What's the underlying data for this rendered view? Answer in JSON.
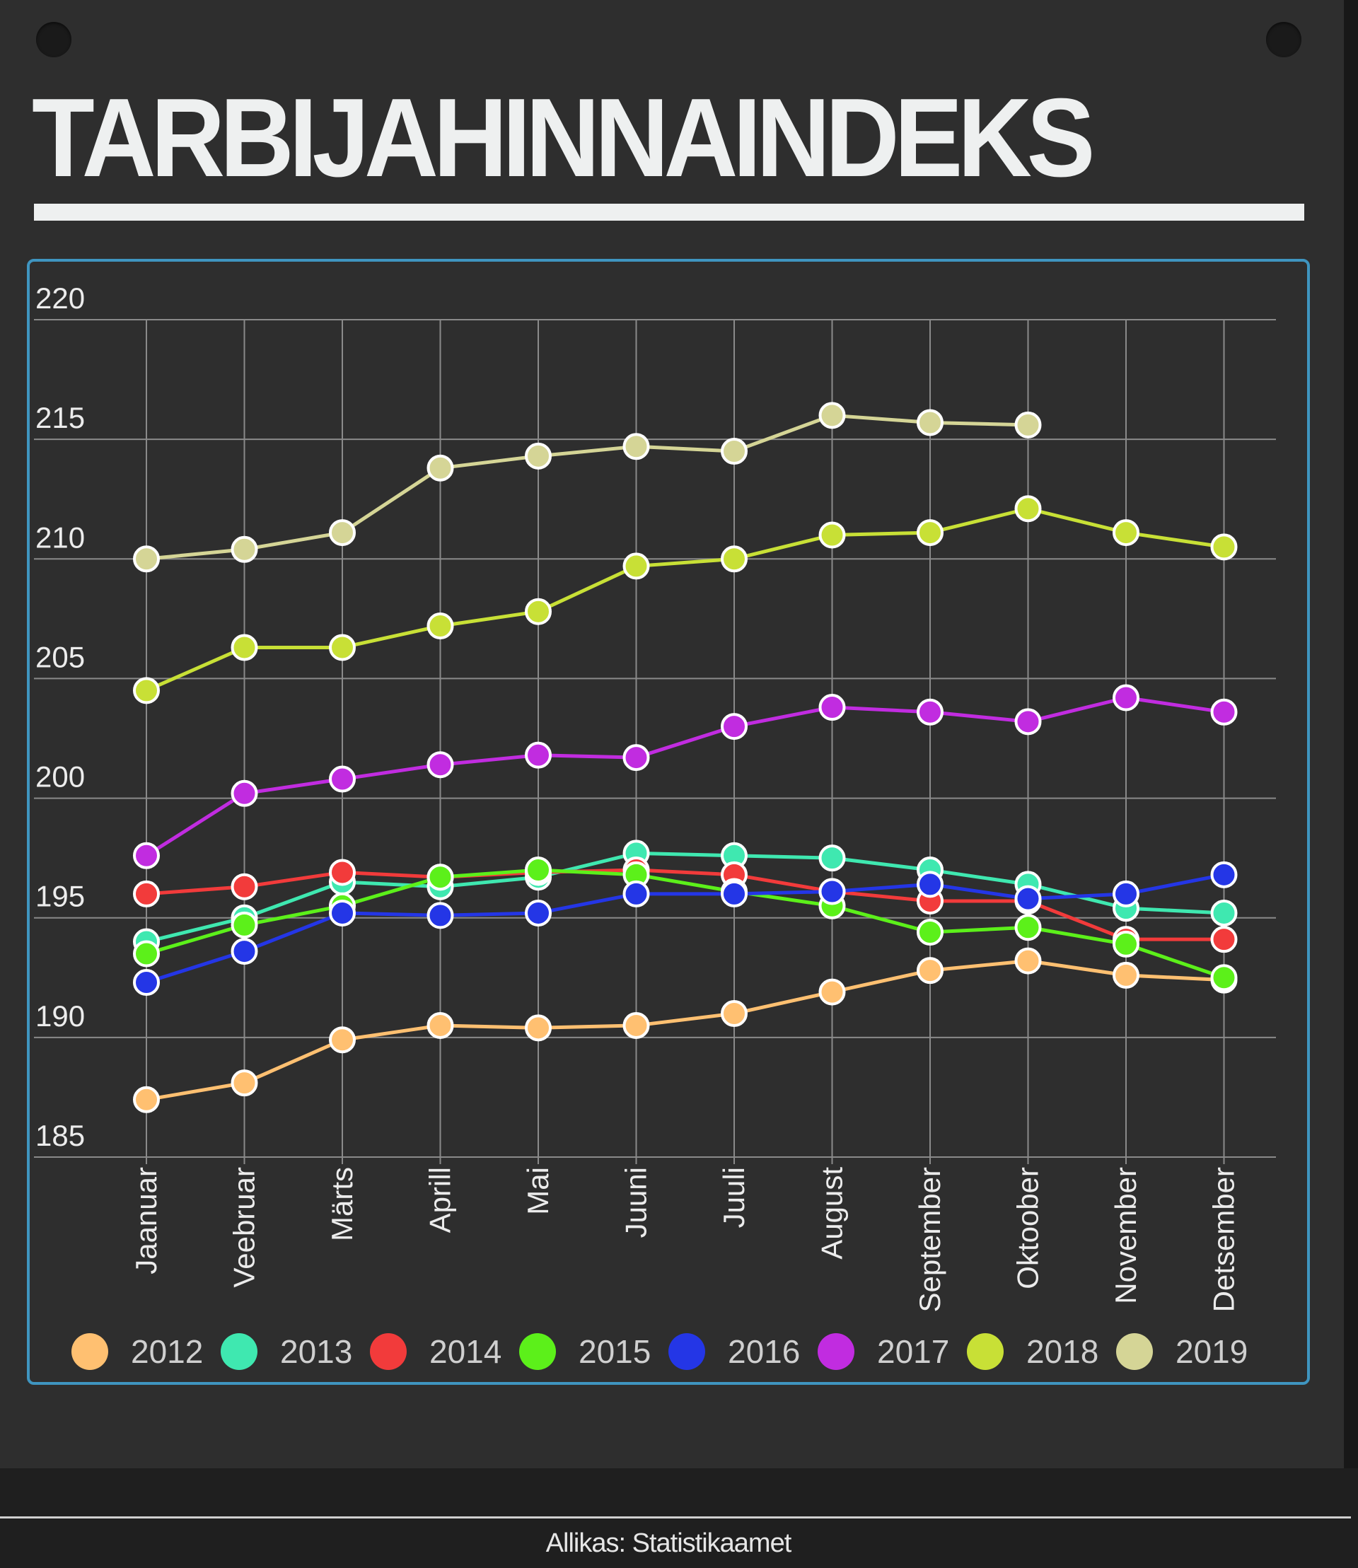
{
  "page": {
    "title": "TARBIJAHINNAINDEKS",
    "source": "Allikas: Statistikaamet"
  },
  "colors": {
    "background": "#2e2e2e",
    "frame": "#3f95c0",
    "grid": "#8a8a8a",
    "text": "#ececec"
  },
  "chart_data": {
    "type": "line",
    "title": "",
    "xlabel": "",
    "ylabel": "",
    "categories": [
      "Jaanuar",
      "Veebruar",
      "Märts",
      "Aprill",
      "Mai",
      "Juuni",
      "Juuli",
      "August",
      "September",
      "Oktoober",
      "November",
      "Detsember"
    ],
    "ylim": [
      185,
      220
    ],
    "yticks": [
      185,
      190,
      195,
      200,
      205,
      210,
      215,
      220
    ],
    "grid": true,
    "legend_position": "bottom",
    "series": [
      {
        "name": "2012",
        "color": "#ffc071",
        "values": [
          187.4,
          188.1,
          189.9,
          190.5,
          190.4,
          190.5,
          191.0,
          191.9,
          192.8,
          193.2,
          192.6,
          192.4
        ]
      },
      {
        "name": "2013",
        "color": "#3fe8b0",
        "values": [
          194.0,
          195.0,
          196.5,
          196.3,
          196.7,
          197.7,
          197.6,
          197.5,
          197.0,
          196.4,
          195.4,
          195.2
        ]
      },
      {
        "name": "2014",
        "color": "#f23b3b",
        "values": [
          196.0,
          196.3,
          196.9,
          196.7,
          196.9,
          197.0,
          196.8,
          196.1,
          195.7,
          195.7,
          194.1,
          194.1
        ]
      },
      {
        "name": "2015",
        "color": "#5cf01a",
        "values": [
          193.5,
          194.7,
          195.5,
          196.7,
          197.0,
          196.8,
          196.1,
          195.5,
          194.4,
          194.6,
          193.9,
          192.5
        ]
      },
      {
        "name": "2016",
        "color": "#2436e6",
        "values": [
          192.3,
          193.6,
          195.2,
          195.1,
          195.2,
          196.0,
          196.0,
          196.1,
          196.4,
          195.8,
          196.0,
          196.8
        ]
      },
      {
        "name": "2017",
        "color": "#c12ce0",
        "values": [
          197.6,
          200.2,
          200.8,
          201.4,
          201.8,
          201.7,
          203.0,
          203.8,
          203.6,
          203.2,
          204.2,
          203.6
        ]
      },
      {
        "name": "2018",
        "color": "#c8e036",
        "values": [
          204.5,
          206.3,
          206.3,
          207.2,
          207.8,
          209.7,
          210.0,
          211.0,
          211.1,
          212.1,
          211.1,
          210.5
        ]
      },
      {
        "name": "2019",
        "color": "#d5d596",
        "values": [
          210.0,
          210.4,
          211.1,
          213.8,
          214.3,
          214.7,
          214.5,
          216.0,
          215.7,
          215.6,
          null,
          null
        ]
      }
    ]
  }
}
